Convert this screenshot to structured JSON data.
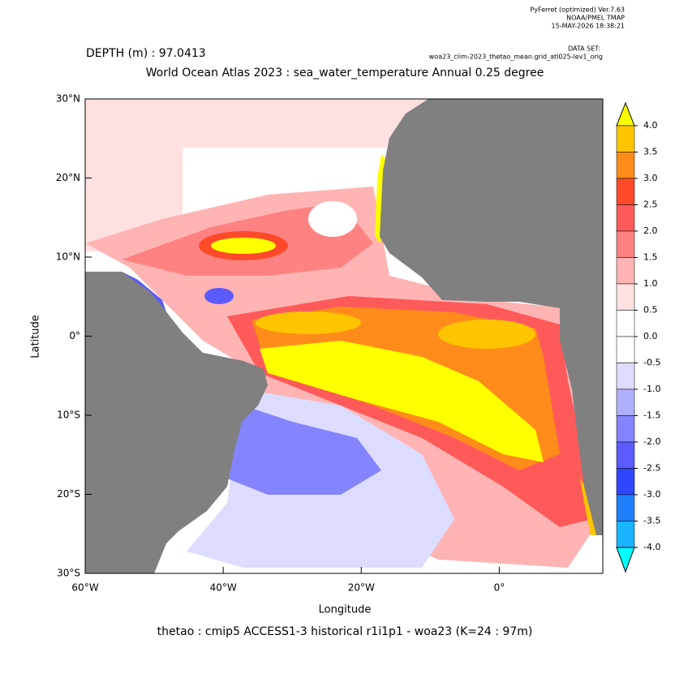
{
  "header": {
    "lines": [
      "PyFerret (optimized) Ver.7.63",
      "NOAA/PMEL TMAP",
      "15-MAY-2026 18:38:21"
    ],
    "dataset_label": "DATA SET:",
    "dataset": "woa23_clim-2023_thetao_mean.grid_atl025-lev1_orig"
  },
  "chart_data": {
    "type": "map",
    "depth_label": "DEPTH (m) : 97.0413",
    "title": "World Ocean Atlas 2023 : sea_water_temperature Annual  0.25 degree",
    "xlabel": "Longitude",
    "ylabel": "Latitude",
    "footer": "thetao : cmip5 ACCESS1-3 historical r1i1p1 - woa23  (K=24 : 97m)",
    "xlim": [
      -60,
      15
    ],
    "ylim": [
      -30,
      30
    ],
    "xticks": [
      {
        "value": -60,
        "label": "60°W"
      },
      {
        "value": -40,
        "label": "40°W"
      },
      {
        "value": -20,
        "label": "20°W"
      },
      {
        "value": 0,
        "label": "0°"
      }
    ],
    "yticks": [
      {
        "value": 30,
        "label": "30°N"
      },
      {
        "value": 20,
        "label": "20°N"
      },
      {
        "value": 10,
        "label": "10°N"
      },
      {
        "value": 0,
        "label": "0°"
      },
      {
        "value": -10,
        "label": "10°S"
      },
      {
        "value": -20,
        "label": "20°S"
      },
      {
        "value": -30,
        "label": "30°S"
      }
    ],
    "levels": [
      {
        "value": 4,
        "label": "4.0"
      },
      {
        "value": 3.5,
        "label": "3.5"
      },
      {
        "value": 3,
        "label": "3.0"
      },
      {
        "value": 2.5,
        "label": "2.5"
      },
      {
        "value": 2,
        "label": "2.0"
      },
      {
        "value": 1.5,
        "label": "1.5"
      },
      {
        "value": 1,
        "label": "1.0"
      },
      {
        "value": 0.5,
        "label": "0.5"
      },
      {
        "value": 0,
        "label": "0.0"
      },
      {
        "value": -0.5,
        "label": "-0.5"
      },
      {
        "value": -1,
        "label": "-1.0"
      },
      {
        "value": -1.5,
        "label": "-1.5"
      },
      {
        "value": -2,
        "label": "-2.0"
      },
      {
        "value": -2.5,
        "label": "-2.5"
      },
      {
        "value": -3,
        "label": "-3.0"
      },
      {
        "value": -3.5,
        "label": "-3.5"
      },
      {
        "value": -4,
        "label": "-4.0"
      }
    ],
    "colors": [
      "#ffff00",
      "#ffc400",
      "#ff8c1a",
      "#ff4a2a",
      "#ff5a5a",
      "#ff8282",
      "#ffb4b4",
      "#ffe0e0",
      "#ffffff",
      "#ffffff",
      "#dcdcff",
      "#b0b0ff",
      "#8484ff",
      "#5a5aff",
      "#2e46ff",
      "#1e80ff",
      "#18b4ff",
      "#00ffff"
    ]
  }
}
